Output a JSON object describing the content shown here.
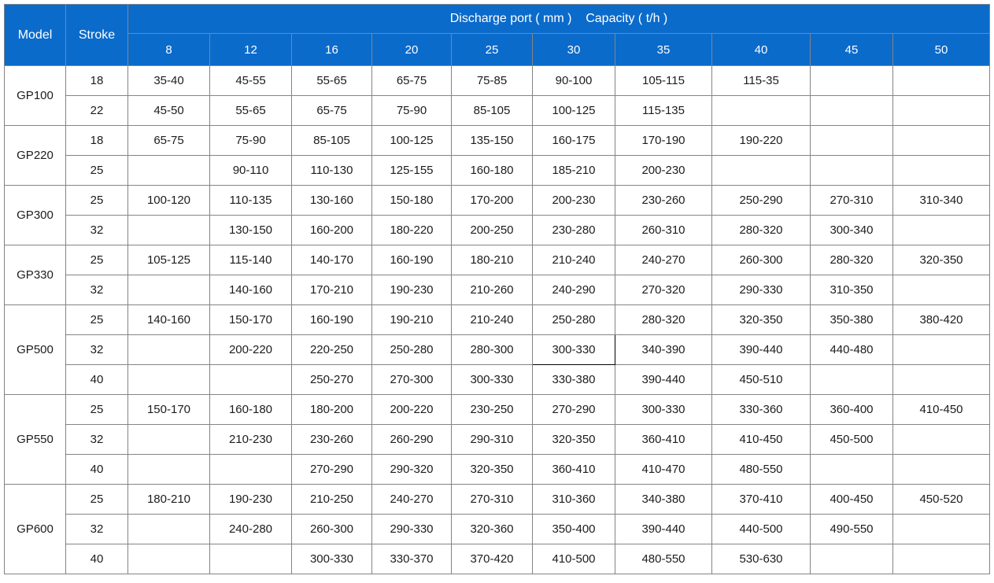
{
  "chart_data": {
    "type": "table",
    "header": {
      "model_label": "Model",
      "stroke_label": "Stroke",
      "caption": "Discharge port ( mm )    Capacity ( t/h )",
      "port_columns": [
        "8",
        "12",
        "16",
        "20",
        "25",
        "30",
        "35",
        "40",
        "45",
        "50"
      ]
    },
    "groups": [
      {
        "model": "GP100",
        "rows": [
          {
            "stroke": "18",
            "values": [
              "35-40",
              "45-55",
              "55-65",
              "65-75",
              "75-85",
              "90-100",
              "105-115",
              "115-35",
              "",
              ""
            ]
          },
          {
            "stroke": "22",
            "values": [
              "45-50",
              "55-65",
              "65-75",
              "75-90",
              "85-105",
              "100-125",
              "115-135",
              "",
              "",
              ""
            ]
          }
        ]
      },
      {
        "model": "GP220",
        "rows": [
          {
            "stroke": "18",
            "values": [
              "65-75",
              "75-90",
              "85-105",
              "100-125",
              "135-150",
              "160-175",
              "170-190",
              "190-220",
              "",
              ""
            ]
          },
          {
            "stroke": "25",
            "values": [
              "",
              "90-110",
              "110-130",
              "125-155",
              "160-180",
              "185-210",
              "200-230",
              "",
              "",
              ""
            ]
          }
        ]
      },
      {
        "model": "GP300",
        "rows": [
          {
            "stroke": "25",
            "values": [
              "100-120",
              "110-135",
              "130-160",
              "150-180",
              "170-200",
              "200-230",
              "230-260",
              "250-290",
              "270-310",
              "310-340"
            ]
          },
          {
            "stroke": "32",
            "values": [
              "",
              "130-150",
              "160-200",
              "180-220",
              "200-250",
              "230-280",
              "260-310",
              "280-320",
              "300-340",
              ""
            ]
          }
        ]
      },
      {
        "model": "GP330",
        "rows": [
          {
            "stroke": "25",
            "values": [
              "105-125",
              "115-140",
              "140-170",
              "160-190",
              "180-210",
              "210-240",
              "240-270",
              "260-300",
              "280-320",
              "320-350"
            ]
          },
          {
            "stroke": "32",
            "values": [
              "",
              "140-160",
              "170-210",
              "190-230",
              "210-260",
              "240-290",
              "270-320",
              "290-330",
              "310-350",
              ""
            ]
          }
        ]
      },
      {
        "model": "GP500",
        "rows": [
          {
            "stroke": "25",
            "values": [
              "140-160",
              "150-170",
              "160-190",
              "190-210",
              "210-240",
              "250-280",
              "280-320",
              "320-350",
              "350-380",
              "380-420"
            ]
          },
          {
            "stroke": "32",
            "values": [
              "",
              "200-220",
              "220-250",
              "250-280",
              "280-300",
              "300-330",
              "340-390",
              "390-440",
              "440-480",
              ""
            ]
          },
          {
            "stroke": "40",
            "values": [
              "",
              "",
              "250-270",
              "270-300",
              "300-330",
              "330-380",
              "390-440",
              "450-510",
              "",
              ""
            ]
          }
        ]
      },
      {
        "model": "GP550",
        "rows": [
          {
            "stroke": "25",
            "values": [
              "150-170",
              "160-180",
              "180-200",
              "200-220",
              "230-250",
              "270-290",
              "300-330",
              "330-360",
              "360-400",
              "410-450"
            ]
          },
          {
            "stroke": "32",
            "values": [
              "",
              "210-230",
              "230-260",
              "260-290",
              "290-310",
              "320-350",
              "360-410",
              "410-450",
              "450-500",
              ""
            ]
          },
          {
            "stroke": "40",
            "values": [
              "",
              "",
              "270-290",
              "290-320",
              "320-350",
              "360-410",
              "410-470",
              "480-550",
              "",
              ""
            ]
          }
        ]
      },
      {
        "model": "GP600",
        "rows": [
          {
            "stroke": "25",
            "values": [
              "180-210",
              "190-230",
              "210-250",
              "240-270",
              "270-310",
              "310-360",
              "340-380",
              "370-410",
              "400-450",
              "450-520"
            ]
          },
          {
            "stroke": "32",
            "values": [
              "",
              "240-280",
              "260-300",
              "290-330",
              "320-360",
              "350-400",
              "390-440",
              "440-500",
              "490-550",
              ""
            ]
          },
          {
            "stroke": "40",
            "values": [
              "",
              "",
              "300-330",
              "330-370",
              "370-420",
              "410-500",
              "480-550",
              "530-630",
              "",
              ""
            ]
          }
        ]
      }
    ],
    "highlights": [
      {
        "model": "GP500",
        "stroke": "32",
        "port": "30",
        "style": "full-black-border"
      },
      {
        "model": "GP600",
        "stroke": "25",
        "port": "50",
        "style": "black-top-left-border"
      }
    ],
    "layout_hints": {
      "grid": "on",
      "legend_position": "none"
    }
  },
  "colors": {
    "header_bg": "#0b6bcb",
    "header_text": "#ffffff",
    "grid_line": "#848484",
    "cell_text": "#1c1c1c",
    "highlight_border": "#000000",
    "background": "#ffffff"
  }
}
